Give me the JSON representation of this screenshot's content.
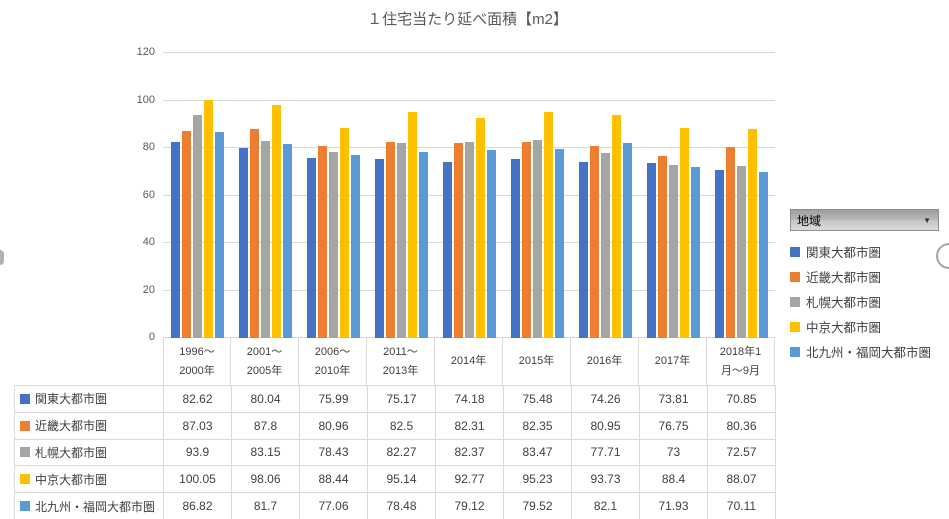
{
  "title": "１住宅当たり延べ面積【m2】",
  "filter_button": {
    "label": "地域"
  },
  "icons": {
    "dropdown_arrow": "▼"
  },
  "colors": {
    "gridline": "#d9d9d9",
    "axis_text": "#595959",
    "table_text": "#404040",
    "series": [
      "#4472C4",
      "#ED7D31",
      "#A5A5A5",
      "#FFC000",
      "#5B9BD5"
    ]
  },
  "chart_data": {
    "type": "bar",
    "title": "１住宅当たり延べ面積【m2】",
    "categories": [
      "1996～\n2000年",
      "2001～\n2005年",
      "2006～\n2010年",
      "2011～\n2013年",
      "2014年",
      "2015年",
      "2016年",
      "2017年",
      "2018年1\n月～9月"
    ],
    "series": [
      {
        "name": "関東大都市圏",
        "color": "#4472C4",
        "values": [
          82.62,
          80.04,
          75.99,
          75.17,
          74.18,
          75.48,
          74.26,
          73.81,
          70.85
        ]
      },
      {
        "name": "近畿大都市圏",
        "color": "#ED7D31",
        "values": [
          87.03,
          87.8,
          80.96,
          82.5,
          82.31,
          82.35,
          80.95,
          76.75,
          80.36
        ]
      },
      {
        "name": "札幌大都市圏",
        "color": "#A5A5A5",
        "values": [
          93.9,
          83.15,
          78.43,
          82.27,
          82.37,
          83.47,
          77.71,
          73,
          72.57
        ]
      },
      {
        "name": "中京大都市圏",
        "color": "#FFC000",
        "values": [
          100.05,
          98.06,
          88.44,
          95.14,
          92.77,
          95.23,
          93.73,
          88.4,
          88.07
        ]
      },
      {
        "name": "北九州・福岡大都市圏",
        "color": "#5B9BD5",
        "values": [
          86.82,
          81.7,
          77.06,
          78.48,
          79.12,
          79.52,
          82.1,
          71.93,
          70.11
        ]
      }
    ],
    "ylabel": "",
    "xlabel": "",
    "ylim": [
      0,
      120
    ],
    "yticks": [
      0,
      20,
      40,
      60,
      80,
      100,
      120
    ],
    "grid": true,
    "legend_position": "right",
    "legend_field_label": "地域"
  }
}
